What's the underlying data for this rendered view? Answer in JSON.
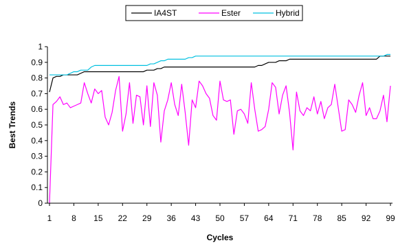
{
  "chart_data": {
    "type": "line",
    "title": "",
    "xlabel": "Cycles",
    "ylabel": "Best Trends",
    "xlim": [
      1,
      99
    ],
    "ylim": [
      0,
      1
    ],
    "x_ticks": [
      1,
      8,
      15,
      22,
      29,
      36,
      43,
      50,
      57,
      64,
      71,
      78,
      85,
      92,
      99
    ],
    "y_ticks": [
      0,
      0.1,
      0.2,
      0.3,
      0.4,
      0.5,
      0.6,
      0.7,
      0.8,
      0.9,
      1
    ],
    "legend_position": "top",
    "grid": false,
    "series": [
      {
        "name": "IA4ST",
        "color": "#000000",
        "values": [
          0.71,
          0.8,
          0.81,
          0.81,
          0.82,
          0.82,
          0.82,
          0.82,
          0.82,
          0.83,
          0.84,
          0.84,
          0.84,
          0.84,
          0.84,
          0.84,
          0.84,
          0.84,
          0.84,
          0.84,
          0.84,
          0.84,
          0.84,
          0.84,
          0.84,
          0.84,
          0.84,
          0.84,
          0.85,
          0.85,
          0.85,
          0.86,
          0.86,
          0.87,
          0.87,
          0.87,
          0.87,
          0.87,
          0.87,
          0.87,
          0.87,
          0.87,
          0.87,
          0.87,
          0.87,
          0.87,
          0.87,
          0.87,
          0.87,
          0.87,
          0.87,
          0.87,
          0.87,
          0.87,
          0.87,
          0.87,
          0.87,
          0.87,
          0.87,
          0.87,
          0.88,
          0.88,
          0.89,
          0.9,
          0.9,
          0.9,
          0.91,
          0.91,
          0.91,
          0.92,
          0.92,
          0.92,
          0.92,
          0.92,
          0.92,
          0.92,
          0.92,
          0.92,
          0.92,
          0.92,
          0.92,
          0.92,
          0.92,
          0.92,
          0.92,
          0.92,
          0.92,
          0.92,
          0.92,
          0.92,
          0.92,
          0.92,
          0.92,
          0.92,
          0.92,
          0.94,
          0.94,
          0.94,
          0.94
        ]
      },
      {
        "name": "Ester",
        "color": "#ff00ff",
        "values": [
          0.0,
          0.63,
          0.65,
          0.68,
          0.63,
          0.64,
          0.61,
          0.62,
          0.63,
          0.64,
          0.77,
          0.7,
          0.64,
          0.73,
          0.7,
          0.72,
          0.55,
          0.5,
          0.58,
          0.72,
          0.81,
          0.46,
          0.57,
          0.77,
          0.51,
          0.69,
          0.68,
          0.5,
          0.75,
          0.49,
          0.77,
          0.69,
          0.39,
          0.59,
          0.66,
          0.77,
          0.63,
          0.56,
          0.76,
          0.58,
          0.37,
          0.66,
          0.61,
          0.78,
          0.75,
          0.7,
          0.67,
          0.56,
          0.53,
          0.78,
          0.66,
          0.65,
          0.66,
          0.44,
          0.59,
          0.6,
          0.57,
          0.51,
          0.77,
          0.6,
          0.46,
          0.47,
          0.49,
          0.6,
          0.77,
          0.74,
          0.57,
          0.69,
          0.75,
          0.58,
          0.34,
          0.71,
          0.59,
          0.56,
          0.61,
          0.59,
          0.68,
          0.57,
          0.65,
          0.54,
          0.61,
          0.63,
          0.76,
          0.61,
          0.46,
          0.47,
          0.66,
          0.63,
          0.58,
          0.69,
          0.77,
          0.56,
          0.61,
          0.54,
          0.54,
          0.59,
          0.69,
          0.52,
          0.75
        ]
      },
      {
        "name": "Hybrid",
        "color": "#00c0e0",
        "values": [
          0.82,
          0.82,
          0.82,
          0.82,
          0.82,
          0.82,
          0.83,
          0.84,
          0.84,
          0.85,
          0.85,
          0.85,
          0.87,
          0.88,
          0.88,
          0.88,
          0.88,
          0.88,
          0.88,
          0.88,
          0.88,
          0.88,
          0.88,
          0.88,
          0.88,
          0.88,
          0.88,
          0.88,
          0.88,
          0.89,
          0.89,
          0.9,
          0.91,
          0.91,
          0.92,
          0.92,
          0.92,
          0.92,
          0.92,
          0.92,
          0.93,
          0.93,
          0.94,
          0.94,
          0.94,
          0.94,
          0.94,
          0.94,
          0.94,
          0.94,
          0.94,
          0.94,
          0.94,
          0.94,
          0.94,
          0.94,
          0.94,
          0.94,
          0.94,
          0.94,
          0.94,
          0.94,
          0.94,
          0.94,
          0.94,
          0.94,
          0.94,
          0.94,
          0.94,
          0.94,
          0.94,
          0.94,
          0.94,
          0.94,
          0.94,
          0.94,
          0.94,
          0.94,
          0.94,
          0.94,
          0.94,
          0.94,
          0.94,
          0.94,
          0.94,
          0.94,
          0.94,
          0.94,
          0.94,
          0.94,
          0.94,
          0.94,
          0.94,
          0.94,
          0.94,
          0.94,
          0.94,
          0.95,
          0.95
        ]
      }
    ]
  }
}
